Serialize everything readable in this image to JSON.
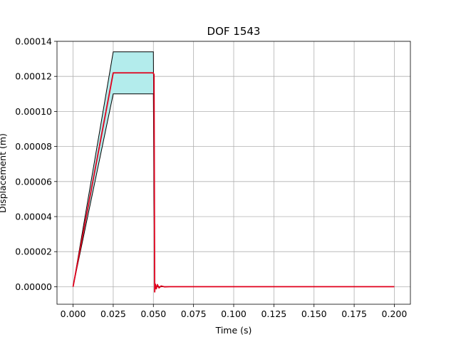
{
  "chart_data": {
    "type": "line",
    "title": "DOF 1543",
    "xlabel": "Time (s)",
    "ylabel": "Displacement (m)",
    "xlim": [
      -0.01,
      0.21
    ],
    "ylim": [
      -1e-05,
      0.00014
    ],
    "x_ticks": [
      0.0,
      0.025,
      0.05,
      0.075,
      0.1,
      0.125,
      0.15,
      0.175,
      0.2
    ],
    "x_tick_labels": [
      "0.000",
      "0.025",
      "0.050",
      "0.075",
      "0.100",
      "0.125",
      "0.150",
      "0.175",
      "0.200"
    ],
    "y_ticks": [
      0,
      2e-05,
      4e-05,
      6e-05,
      8e-05,
      0.0001,
      0.00012,
      0.00014
    ],
    "y_tick_labels": [
      "0.00000",
      "0.00002",
      "0.00004",
      "0.00006",
      "0.00008",
      "0.00010",
      "0.00012",
      "0.00014"
    ],
    "grid": true,
    "band": {
      "fill": "#b3ecec",
      "edge": "#000000",
      "x": [
        0.0,
        0.025,
        0.05,
        0.0508,
        0.2
      ],
      "upper": [
        0.0,
        0.000134,
        0.000134,
        0.0,
        0.0
      ],
      "lower": [
        0.0,
        0.00011,
        0.00011,
        0.0,
        0.0
      ]
    },
    "series": [
      {
        "color": "#e0001c",
        "x": [
          0.0,
          0.025,
          0.0499,
          0.0504,
          0.0508,
          0.0512,
          0.0518,
          0.0525,
          0.0535,
          0.0548,
          0.057,
          0.06,
          0.2
        ],
        "y": [
          0.0,
          0.000122,
          0.000122,
          0.000121,
          -3e-06,
          1.5e-06,
          -1.2e-06,
          1.2e-06,
          -7e-07,
          4e-07,
          -1e-07,
          0.0,
          0.0
        ]
      }
    ]
  }
}
